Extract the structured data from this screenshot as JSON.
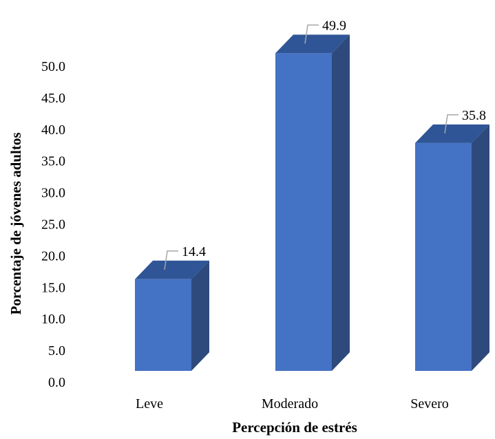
{
  "chart_data": {
    "type": "bar",
    "categories": [
      "Leve",
      "Moderado",
      "Severo"
    ],
    "values": [
      14.4,
      49.9,
      35.8
    ],
    "data_labels": [
      "14.4",
      "49.9",
      "35.8"
    ],
    "title": "",
    "xlabel": "Percepción de estrés",
    "ylabel": "Porcentaje de jóvenes adultos",
    "ylim": [
      0,
      50
    ],
    "yticks": [
      "0.0",
      "5.0",
      "10.0",
      "15.0",
      "20.0",
      "25.0",
      "30.0",
      "35.0",
      "40.0",
      "45.0",
      "50.0"
    ],
    "grid": false,
    "legend": "none",
    "style": "3d-column",
    "colors": {
      "front": "#4472C4",
      "side": "#2E4A7D",
      "top": "#2F5597",
      "leader": "#A6A6A6"
    }
  }
}
